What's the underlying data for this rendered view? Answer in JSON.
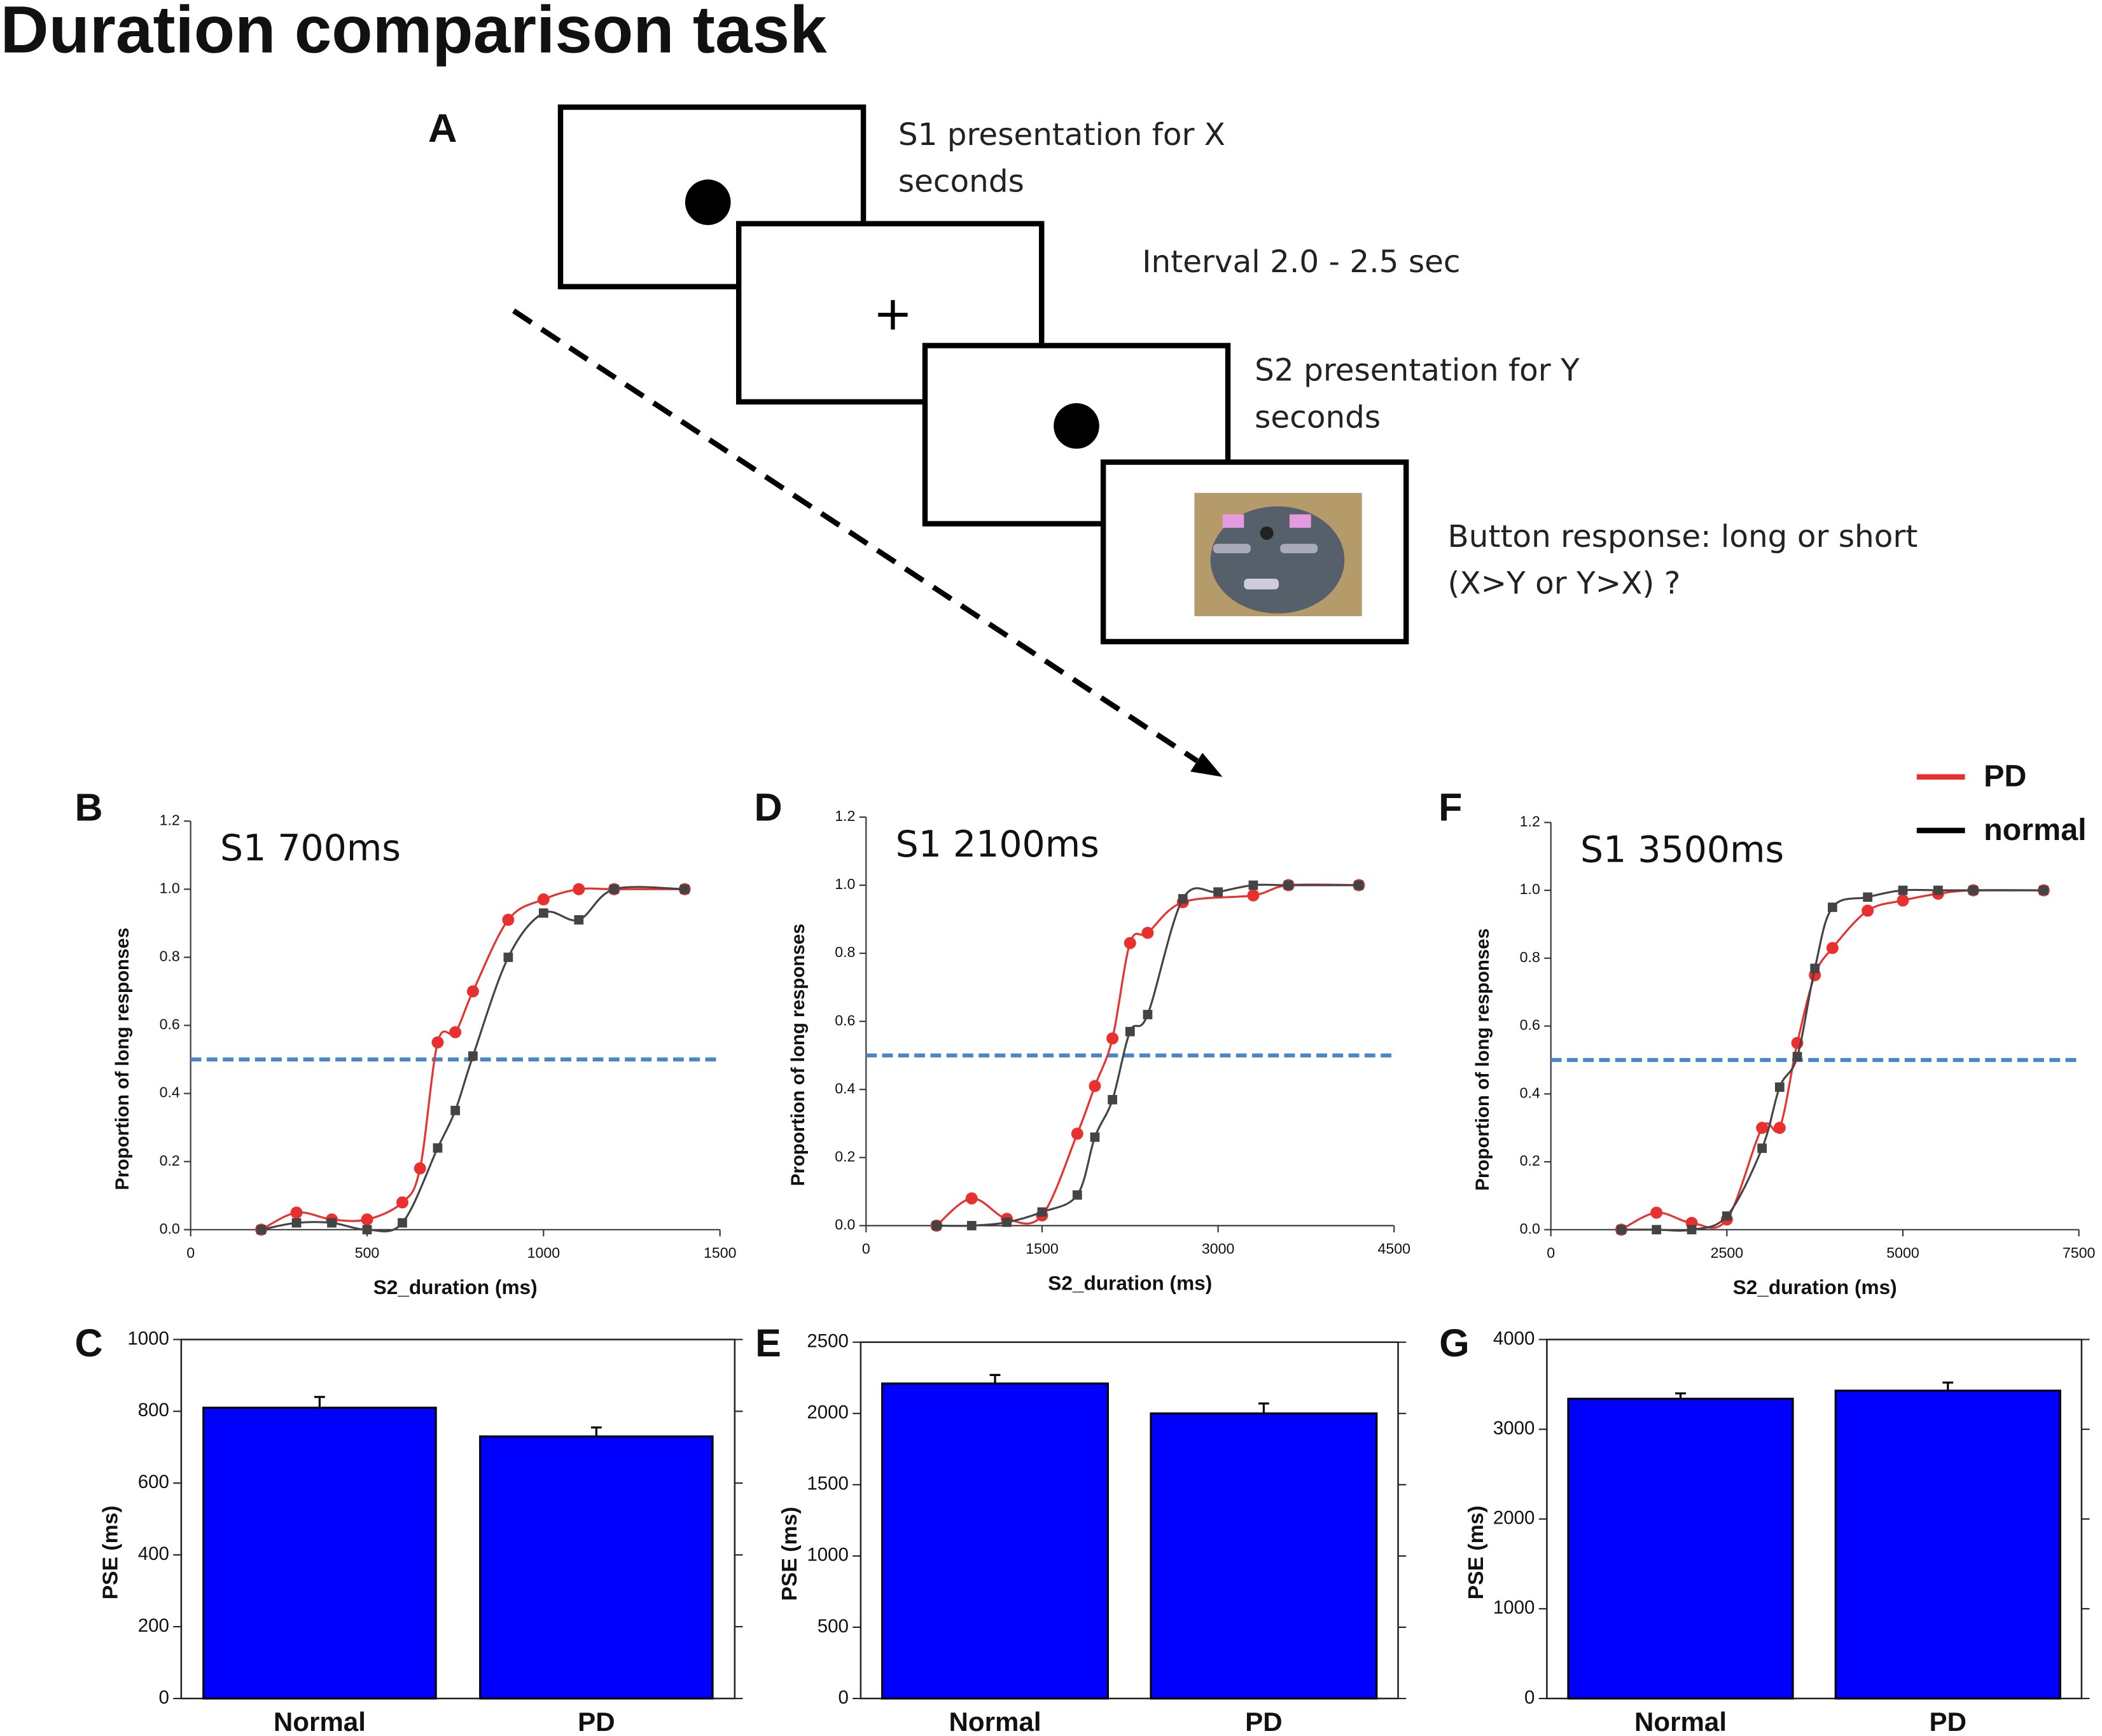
{
  "title": "Duration comparison task",
  "panel_a": {
    "label": "A",
    "steps": [
      {
        "lines": [
          "S1  presentation for X",
          "seconds"
        ]
      },
      {
        "lines": [
          "Interval 2.0 - 2.5 sec"
        ]
      },
      {
        "lines": [
          "S2 presentation for Y",
          "seconds"
        ]
      },
      {
        "lines": [
          "Button response: long or short",
          "(X>Y or Y>X) ?"
        ]
      }
    ]
  },
  "chart_data": [
    {
      "type": "line",
      "panel": "B",
      "title": "S1 700ms",
      "x_label": "S2_duration (ms)",
      "y_label": "Proportion of long responses",
      "xlim": [
        0,
        1500
      ],
      "xticks": [
        0,
        500,
        1000,
        1500
      ],
      "ylim": [
        0,
        1.2
      ],
      "yticks": [
        {
          "value": 0,
          "label": "0.0"
        },
        0.2,
        0.4,
        0.6,
        0.8,
        {
          "value": 1,
          "label": "1.0"
        },
        1.2
      ],
      "reference_line": {
        "y": 0.5,
        "color": "#4a86c8"
      },
      "series": [
        {
          "color": "#e8312f",
          "x": [
            200,
            300,
            400,
            500,
            600,
            650,
            700,
            750,
            800,
            900,
            1000,
            1100,
            1200,
            1400
          ],
          "values": [
            0,
            0.05,
            0.03,
            0.03,
            0.08,
            0.18,
            0.55,
            0.58,
            0.7,
            0.91,
            0.97,
            1.0,
            1.0,
            1.0
          ]
        },
        {
          "color": "#444444",
          "x": [
            200,
            300,
            400,
            500,
            600,
            700,
            750,
            800,
            900,
            1000,
            1100,
            1200,
            1400
          ],
          "values": [
            0,
            0.02,
            0.02,
            0,
            0.02,
            0.24,
            0.35,
            0.51,
            0.8,
            0.93,
            0.91,
            1.0,
            1.0
          ]
        }
      ]
    },
    {
      "type": "bar",
      "panel": "C",
      "y_label": "PSE (ms)",
      "categories": [
        "Normal",
        "PD"
      ],
      "values": [
        810,
        730
      ],
      "errors": [
        30,
        25
      ],
      "color": "#0000ff",
      "ylim": [
        0,
        1000
      ],
      "yticks": [
        0,
        200,
        400,
        600,
        800,
        1000
      ]
    },
    {
      "type": "line",
      "panel": "D",
      "title": "S1 2100ms",
      "x_label": "S2_duration (ms)",
      "y_label": "Proportion of long responses",
      "xlim": [
        0,
        4500
      ],
      "xticks": [
        0,
        1500,
        3000,
        4500
      ],
      "ylim": [
        0,
        1.2
      ],
      "yticks": [
        {
          "value": 0,
          "label": "0.0"
        },
        0.2,
        0.4,
        0.6,
        0.8,
        {
          "value": 1,
          "label": "1.0"
        },
        1.2
      ],
      "reference_line": {
        "y": 0.5,
        "color": "#4a86c8"
      },
      "series": [
        {
          "color": "#e8312f",
          "x": [
            600,
            900,
            1200,
            1500,
            1800,
            1950,
            2100,
            2250,
            2400,
            2700,
            3300,
            3600,
            4200
          ],
          "values": [
            0,
            0.08,
            0.02,
            0.03,
            0.27,
            0.41,
            0.55,
            0.83,
            0.86,
            0.95,
            0.97,
            1.0,
            1.0
          ]
        },
        {
          "color": "#444444",
          "x": [
            600,
            900,
            1200,
            1500,
            1800,
            1950,
            2100,
            2250,
            2400,
            2700,
            3000,
            3300,
            3600,
            4200
          ],
          "values": [
            0,
            0,
            0.01,
            0.04,
            0.09,
            0.26,
            0.37,
            0.57,
            0.62,
            0.96,
            0.98,
            1.0,
            1.0,
            1.0
          ]
        }
      ]
    },
    {
      "type": "bar",
      "panel": "E",
      "y_label": "PSE (ms)",
      "categories": [
        "Normal",
        "PD"
      ],
      "values": [
        2210,
        2000
      ],
      "errors": [
        60,
        70
      ],
      "color": "#0000ff",
      "ylim": [
        0,
        2500
      ],
      "yticks": [
        0,
        500,
        1000,
        1500,
        2000,
        2500
      ]
    },
    {
      "type": "line",
      "panel": "F",
      "title": "S1 3500ms",
      "x_label": "S2_duration (ms)",
      "y_label": "Proportion of long responses",
      "xlim": [
        0,
        7500
      ],
      "xticks": [
        0,
        2500,
        5000,
        7500
      ],
      "ylim": [
        0,
        1.2
      ],
      "yticks": [
        {
          "value": 0,
          "label": "0.0"
        },
        0.2,
        0.4,
        0.6,
        0.8,
        {
          "value": 1,
          "label": "1.0"
        },
        1.2
      ],
      "reference_line": {
        "y": 0.5,
        "color": "#4a86c8"
      },
      "series": [
        {
          "name": "PD",
          "color": "#e8312f",
          "x": [
            1000,
            1500,
            2000,
            2500,
            3000,
            3250,
            3500,
            3750,
            4000,
            4500,
            5000,
            5500,
            6000,
            7000
          ],
          "values": [
            0,
            0.05,
            0.02,
            0.03,
            0.3,
            0.3,
            0.55,
            0.75,
            0.83,
            0.94,
            0.97,
            0.99,
            1.0,
            1.0
          ]
        },
        {
          "name": "normal",
          "color": "#444444",
          "x": [
            1000,
            1500,
            2000,
            2500,
            3000,
            3250,
            3500,
            3750,
            4000,
            4500,
            5000,
            5500,
            6000,
            7000
          ],
          "values": [
            0,
            0,
            0,
            0.04,
            0.24,
            0.42,
            0.51,
            0.77,
            0.95,
            0.98,
            1.0,
            1.0,
            1.0,
            1.0
          ]
        }
      ]
    },
    {
      "type": "bar",
      "panel": "G",
      "y_label": "PSE (ms)",
      "categories": [
        "Normal",
        "PD"
      ],
      "values": [
        3340,
        3430
      ],
      "errors": [
        60,
        90
      ],
      "color": "#0000ff",
      "ylim": [
        0,
        4000
      ],
      "yticks": [
        0,
        1000,
        2000,
        3000,
        4000
      ]
    }
  ]
}
